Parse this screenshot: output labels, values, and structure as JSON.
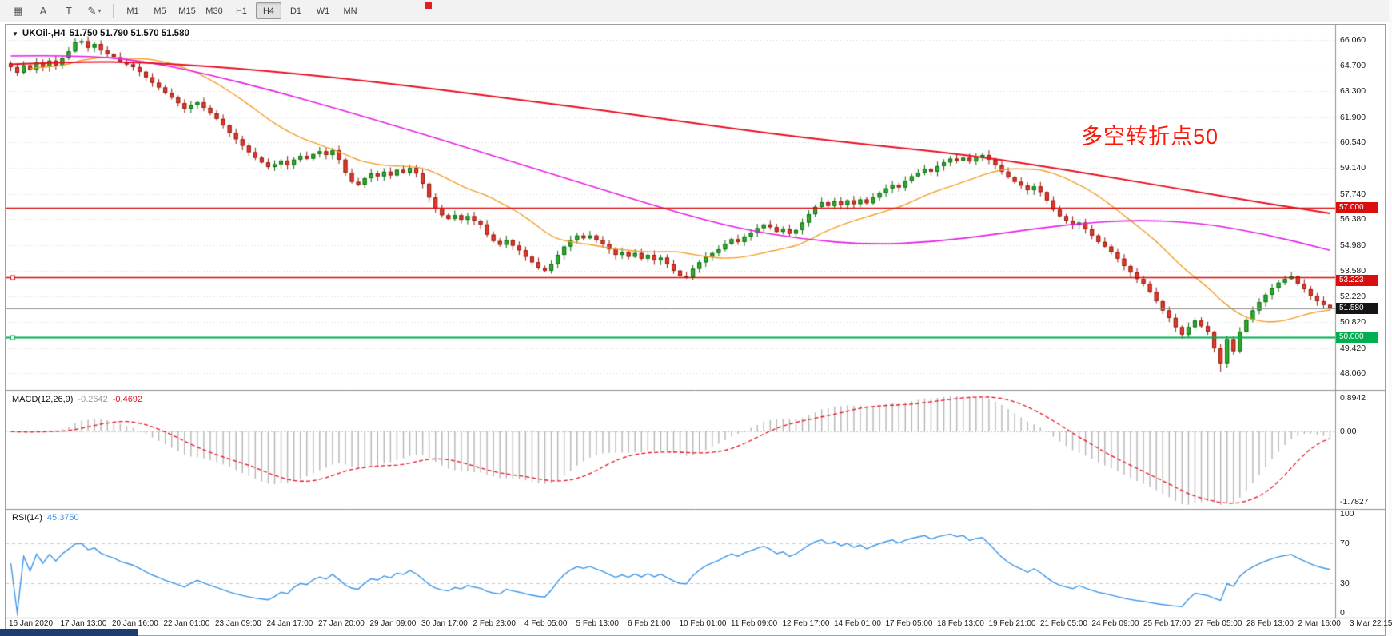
{
  "toolbar": {
    "tools": [
      {
        "id": "chart-grid",
        "glyph": "▦"
      },
      {
        "id": "cursor-tool",
        "glyph": "A"
      },
      {
        "id": "text-tool",
        "glyph": "T"
      },
      {
        "id": "draw-tool",
        "glyph": "✎",
        "caret": "▾"
      }
    ],
    "timeframes": [
      "M1",
      "M5",
      "M15",
      "M30",
      "H1",
      "H4",
      "D1",
      "W1",
      "MN"
    ],
    "active_timeframe": "H4"
  },
  "chart_data": {
    "type": "candlestick",
    "title": "UKOil-,H4",
    "ohlc_text": "51.750 51.790 51.570 51.580",
    "annotation": {
      "text": "多空转折点50",
      "color": "#fd1608"
    },
    "y_axis_labels": [
      "66.060",
      "64.700",
      "63.300",
      "61.900",
      "60.540",
      "59.140",
      "57.740",
      "56.380",
      "54.980",
      "53.580",
      "52.220",
      "50.820",
      "49.420",
      "48.060"
    ],
    "axis_range": {
      "max": 66.8,
      "min": 47.2
    },
    "horizontal_levels": [
      {
        "label": "57.000",
        "value": 57.0,
        "color": "#d90e0e",
        "width": 1.7,
        "handle": false
      },
      {
        "label": "53.223",
        "value": 53.223,
        "color": "#d90e0e",
        "width": 1.7,
        "handle": true
      },
      {
        "label": "50.000",
        "value": 50.0,
        "color": "#00b050",
        "width": 2.0,
        "handle": true
      }
    ],
    "current_price": {
      "label": "51.580",
      "value": 51.58,
      "badge_color": "#151515",
      "line_color": "#8f8f8f"
    },
    "x_axis_labels": [
      "16 Jan 2020",
      "17 Jan 13:00",
      "20 Jan 16:00",
      "22 Jan 01:00",
      "23 Jan 09:00",
      "24 Jan 17:00",
      "27 Jan 20:00",
      "29 Jan 09:00",
      "30 Jan 17:00",
      "2 Feb 23:00",
      "4 Feb 05:00",
      "5 Feb 13:00",
      "6 Feb 21:00",
      "10 Feb 01:00",
      "11 Feb 09:00",
      "12 Feb 17:00",
      "14 Feb 01:00",
      "17 Feb 05:00",
      "18 Feb 13:00",
      "19 Feb 21:00",
      "21 Feb 05:00",
      "24 Feb 09:00",
      "25 Feb 17:00",
      "27 Feb 05:00",
      "28 Feb 13:00",
      "2 Mar 16:00",
      "3 Mar 22:15"
    ],
    "closes": [
      64.6,
      64.3,
      64.7,
      64.45,
      64.85,
      64.6,
      64.95,
      64.7,
      65.1,
      65.45,
      65.95,
      66.0,
      65.65,
      65.85,
      65.5,
      65.3,
      65.15,
      64.9,
      64.75,
      64.6,
      64.35,
      64.05,
      63.75,
      63.5,
      63.2,
      62.95,
      62.65,
      62.35,
      62.55,
      62.7,
      62.4,
      62.1,
      61.8,
      61.45,
      61.05,
      60.7,
      60.35,
      60.0,
      59.7,
      59.45,
      59.2,
      59.35,
      59.55,
      59.3,
      59.6,
      59.8,
      59.65,
      59.9,
      60.05,
      59.85,
      60.1,
      59.6,
      58.9,
      58.4,
      58.25,
      58.6,
      58.85,
      58.7,
      58.95,
      58.75,
      59.05,
      58.9,
      59.15,
      58.85,
      58.3,
      57.55,
      56.95,
      56.6,
      56.4,
      56.6,
      56.35,
      56.55,
      56.3,
      56.1,
      55.55,
      55.2,
      55.0,
      55.25,
      54.95,
      54.7,
      54.35,
      54.05,
      53.75,
      53.6,
      53.95,
      54.45,
      54.9,
      55.25,
      55.5,
      55.35,
      55.5,
      55.25,
      55.05,
      54.75,
      54.45,
      54.6,
      54.35,
      54.55,
      54.25,
      54.45,
      54.15,
      54.3,
      53.95,
      53.6,
      53.3,
      53.25,
      53.7,
      54.05,
      54.35,
      54.55,
      54.75,
      55.05,
      55.3,
      55.15,
      55.45,
      55.65,
      55.9,
      56.1,
      55.95,
      55.7,
      55.85,
      55.6,
      55.8,
      56.2,
      56.65,
      57.05,
      57.3,
      57.1,
      57.35,
      57.15,
      57.4,
      57.2,
      57.45,
      57.25,
      57.55,
      57.8,
      58.05,
      58.25,
      58.1,
      58.45,
      58.7,
      58.9,
      59.1,
      58.95,
      59.25,
      59.45,
      59.65,
      59.55,
      59.7,
      59.5,
      59.75,
      59.85,
      59.6,
      59.3,
      58.95,
      58.65,
      58.4,
      58.2,
      57.95,
      58.15,
      57.85,
      57.4,
      56.9,
      56.55,
      56.3,
      56.05,
      56.2,
      55.85,
      55.5,
      55.15,
      54.9,
      54.6,
      54.25,
      53.85,
      53.5,
      53.15,
      52.9,
      52.45,
      51.95,
      51.45,
      51.05,
      50.55,
      50.15,
      50.55,
      50.9,
      50.6,
      50.3,
      49.4,
      48.6,
      49.9,
      49.25,
      50.3,
      50.95,
      51.45,
      51.9,
      52.3,
      52.65,
      52.95,
      53.15,
      53.3,
      52.9,
      52.6,
      52.25,
      51.95,
      51.75,
      51.58
    ],
    "ma_slow_red": [
      64.75,
      64.9,
      64.85,
      64.65,
      64.35,
      64.0,
      63.6,
      63.15,
      62.7,
      62.25,
      61.75,
      61.25,
      60.8,
      60.4,
      60.05,
      59.6,
      59.05,
      58.45,
      57.85,
      57.25,
      56.7
    ],
    "ma_mid_magenta": [
      65.2,
      65.25,
      64.95,
      64.2,
      63.3,
      62.3,
      61.25,
      60.15,
      59.05,
      57.95,
      56.85,
      55.9,
      55.3,
      55.0,
      55.15,
      55.6,
      56.1,
      56.35,
      56.2,
      55.6,
      54.7
    ],
    "colors": {
      "up_fill": "#2fae2f",
      "up_border": "#0f6b0f",
      "down_fill": "#e8392c",
      "down_border": "#8f1d12",
      "ma_fast": "#f59e2a",
      "ma_mid": "#e520e5",
      "ma_slow": "#e81123",
      "grid": "#d9d9d9"
    }
  },
  "indicators": {
    "macd": {
      "title": "MACD(12,26,9)",
      "main_value": "-0.2642",
      "signal_value": "-0.4692",
      "axis_labels": [
        "0.8942",
        "0.00",
        "-1.7827"
      ],
      "axis_max": 0.8942,
      "axis_min": -1.7827,
      "histogram_color": "#b5b5b5",
      "signal_color": "#e81123"
    },
    "rsi": {
      "title": "RSI(14)",
      "value": "45.3750",
      "axis_labels": [
        "100",
        "70",
        "30",
        "0"
      ],
      "levels": [
        70,
        30
      ],
      "line_color": "#3c96e8"
    }
  }
}
